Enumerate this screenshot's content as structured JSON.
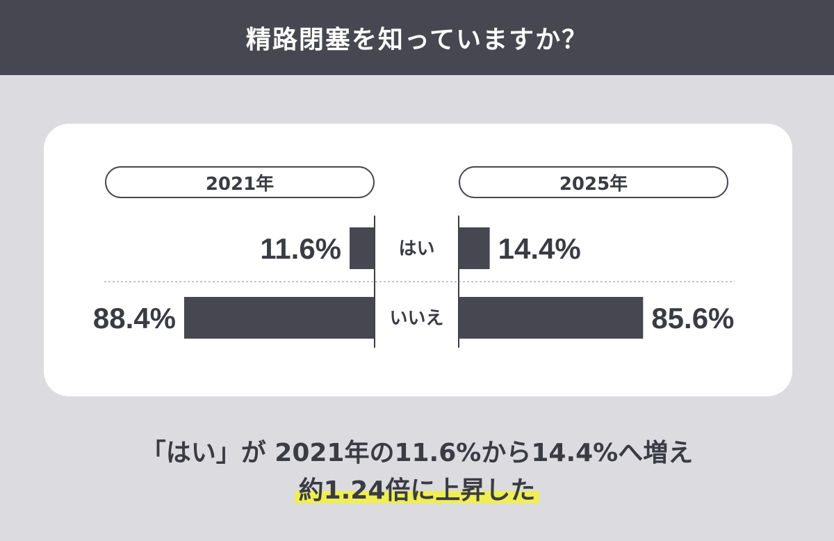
{
  "header": {
    "title": "精路閉塞を知っていますか？"
  },
  "chart_data": {
    "type": "bar",
    "layout": "back-to-back horizontal",
    "categories": [
      "はい",
      "いいえ"
    ],
    "series": [
      {
        "name": "2021年",
        "values": [
          11.6,
          88.4
        ],
        "labels": [
          "11.6%",
          "88.4%"
        ],
        "color": "#464750"
      },
      {
        "name": "2025年",
        "values": [
          14.4,
          85.6
        ],
        "labels": [
          "14.4%",
          "85.6%"
        ],
        "color": "#464750"
      }
    ],
    "unit": "%",
    "xlim": [
      0,
      100
    ],
    "grid": false
  },
  "caption": {
    "line1": "「はい」が 2021年の11.6%から14.4%へ増え",
    "line2": "約1.24倍に上昇した"
  },
  "colors": {
    "header_bg": "#464750",
    "page_bg": "#dcdbe0",
    "bar": "#464750",
    "highlight": "#eeee55"
  }
}
